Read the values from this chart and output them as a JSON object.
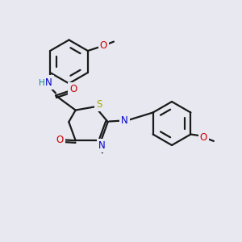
{
  "background_color": "#e8e8f0",
  "bond_color": "#1a1a1a",
  "atom_colors": {
    "S": "#aaaa00",
    "N": "#0000cc",
    "O": "#cc0000",
    "H": "#008888",
    "C": "#1a1a1a"
  },
  "figsize": [
    3.0,
    3.0
  ],
  "dpi": 100
}
